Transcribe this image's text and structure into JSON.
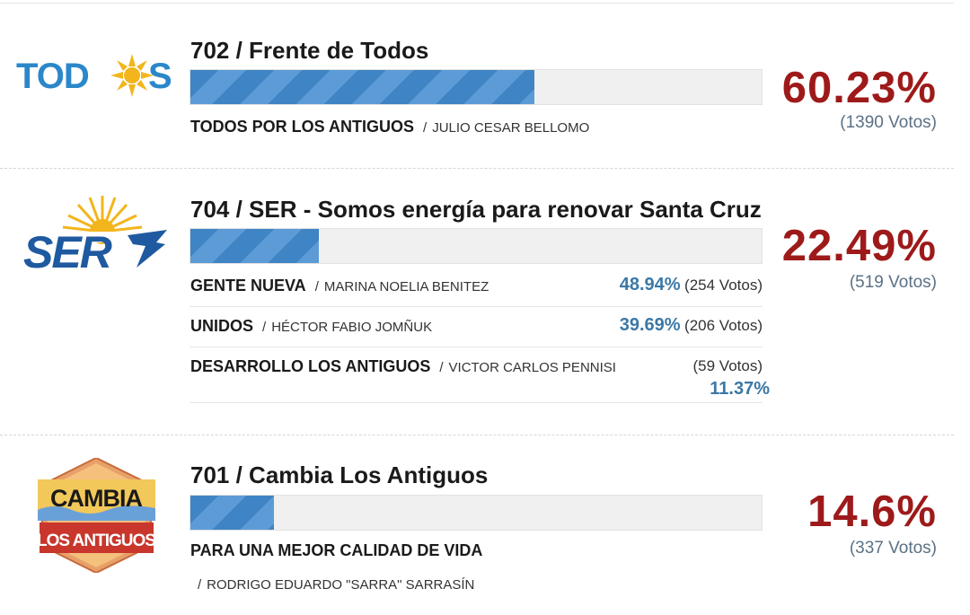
{
  "lists": [
    {
      "title": "702 / Frente de Todos",
      "logo": "todos-logo",
      "percent": "60.23%",
      "percent_value": 60.23,
      "votes": "(1390 Votos)",
      "party": "TODOS POR LOS ANTIGUOS",
      "candidate": "JULIO CESAR BELLOMO"
    },
    {
      "title": "704 / SER - Somos energía para renovar Santa Cruz",
      "logo": "ser-logo",
      "percent": "22.49%",
      "percent_value": 22.49,
      "votes": "(519 Votos)",
      "sublists": [
        {
          "party": "GENTE NUEVA",
          "candidate": "MARINA NOELIA BENITEZ",
          "percent": "48.94%",
          "votes": "(254 Votos)"
        },
        {
          "party": "UNIDOS",
          "candidate": "HÉCTOR FABIO JOMÑUK",
          "percent": "39.69%",
          "votes": "(206 Votos)"
        },
        {
          "party": "DESARROLLO LOS ANTIGUOS",
          "candidate": "VICTOR CARLOS PENNISI",
          "percent": "11.37%",
          "votes": "(59 Votos)"
        }
      ]
    },
    {
      "title": "701 / Cambia Los Antiguos",
      "logo": "cambia-logo",
      "percent": "14.6%",
      "percent_value": 14.6,
      "votes": "(337 Votos)",
      "party": "PARA UNA MEJOR CALIDAD DE VIDA",
      "candidate": "RODRIGO EDUARDO \"SARRA\" SARRASÍN"
    }
  ],
  "logos": {
    "todos": {
      "left": "TOD",
      "right": "S"
    },
    "ser": {
      "text": "SER"
    },
    "cambia": {
      "top": "CAMBIA",
      "bottom": "LOS ANTIGUOS"
    }
  },
  "colors": {
    "percent": "#9e1a1a",
    "bar": "#3f84c4",
    "sub_percent": "#3c78a6"
  }
}
